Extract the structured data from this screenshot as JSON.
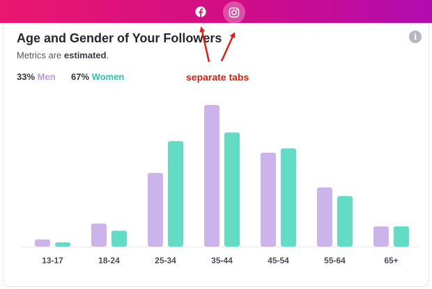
{
  "tabs": [
    {
      "icon": "facebook-icon",
      "active": false
    },
    {
      "icon": "instagram-icon",
      "active": true
    }
  ],
  "header": {
    "title": "Age and Gender of Your Followers",
    "subtitle_prefix": "Metrics are ",
    "subtitle_emphasis": "estimated",
    "subtitle_suffix": "."
  },
  "stats": {
    "men_pct": "33%",
    "men_label": "Men",
    "women_pct": "67%",
    "women_label": "Women"
  },
  "annotation": {
    "text": "separate tabs",
    "color": "#e8190f"
  },
  "colors": {
    "men": "#cab4e9",
    "women": "#63dcc6",
    "bar_top": "#e9176f",
    "bar_end": "#b10bb0"
  },
  "chart_data": {
    "type": "bar",
    "categories": [
      "13-17",
      "18-24",
      "25-34",
      "35-44",
      "45-54",
      "55-64",
      "65+"
    ],
    "series": [
      {
        "name": "Men",
        "values": [
          5,
          16,
          51,
          98,
          65,
          41,
          14
        ]
      },
      {
        "name": "Women",
        "values": [
          3,
          11,
          73,
          79,
          68,
          35,
          14
        ]
      }
    ],
    "ylim": [
      0,
      100
    ],
    "grid": false,
    "legend": "top-left"
  }
}
